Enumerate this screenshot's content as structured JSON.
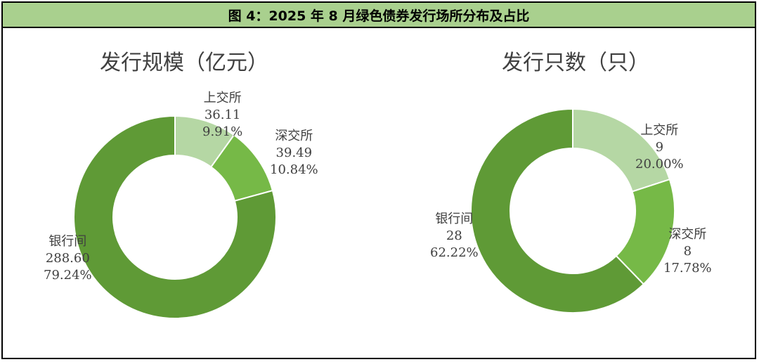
{
  "header": {
    "title": "图 4：2025 年 8 月绿色债券发行场所分布及占比"
  },
  "colors": {
    "header_bg": "#a9d08e",
    "slice_light": "#b5d7a4",
    "slice_mid": "#76b947",
    "slice_dark": "#5f9a36"
  },
  "chart_data": [
    {
      "type": "pie",
      "title": "发行规模（亿元）",
      "slices": [
        {
          "label": "上交所",
          "value": 36.11,
          "value_text": "36.11",
          "percent": "9.91%",
          "color": "#b5d7a4"
        },
        {
          "label": "深交所",
          "value": 39.49,
          "value_text": "39.49",
          "percent": "10.84%",
          "color": "#76b947"
        },
        {
          "label": "银行间",
          "value": 288.6,
          "value_text": "288.60",
          "percent": "79.24%",
          "color": "#5f9a36"
        }
      ]
    },
    {
      "type": "pie",
      "title": "发行只数（只）",
      "slices": [
        {
          "label": "上交所",
          "value": 9,
          "value_text": "9",
          "percent": "20.00%",
          "color": "#b5d7a4"
        },
        {
          "label": "深交所",
          "value": 8,
          "value_text": "8",
          "percent": "17.78%",
          "color": "#76b947"
        },
        {
          "label": "银行间",
          "value": 28,
          "value_text": "28",
          "percent": "62.22%",
          "color": "#5f9a36"
        }
      ]
    }
  ]
}
